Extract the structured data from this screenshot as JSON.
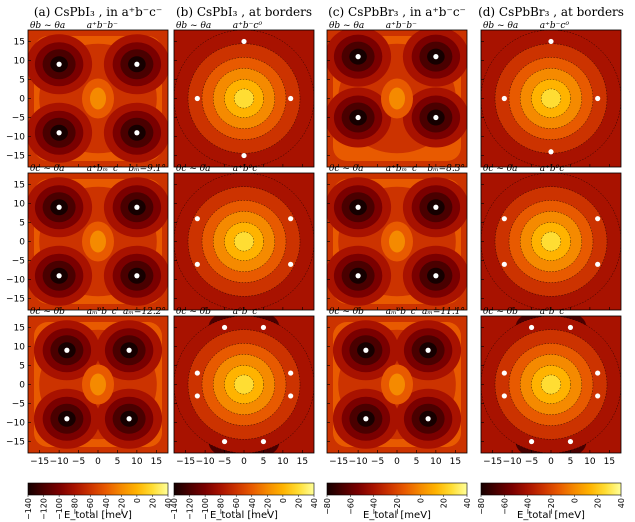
{
  "chart_data": {
    "type": "heatmap",
    "column_titles": [
      "(a) CsPbI₃ , in a⁺b⁻c⁻",
      "(b) CsPbI₃ , at borders",
      "(c) CsPbBr₃ , in a⁺b⁻c⁻",
      "(d) CsPbBr₃ , at borders"
    ],
    "x_ticks": [
      "−15",
      "−10",
      "−5",
      "0",
      "5",
      "10",
      "15"
    ],
    "y_ticks": [
      "15",
      "10",
      "5",
      "0",
      "−5",
      "−10",
      "−15"
    ],
    "xlim": [
      -18,
      18
    ],
    "ylim": [
      -18,
      18
    ],
    "colorbar_label": "E_total [meV]",
    "colorbars": [
      {
        "ticks": [
          "−140",
          "−120",
          "−100",
          "−80",
          "−60",
          "−40",
          "−20",
          "0",
          "20",
          "40"
        ],
        "range": [
          -140,
          40
        ]
      },
      {
        "ticks": [
          "−140",
          "−120",
          "−100",
          "−80",
          "−60",
          "−40",
          "−20",
          "0",
          "20",
          "40"
        ],
        "range": [
          -140,
          40
        ]
      },
      {
        "ticks": [
          "−80",
          "−60",
          "−40",
          "−20",
          "0",
          "20",
          "40"
        ],
        "range": [
          -90,
          40
        ]
      },
      {
        "ticks": [
          "−80",
          "−60",
          "−40",
          "−20",
          "0",
          "20",
          "40"
        ],
        "range": [
          -90,
          40
        ]
      }
    ],
    "panels": [
      {
        "row": 0,
        "col": 0,
        "ylabel": "θb ~ θa",
        "phase": "a⁺b⁻b⁻",
        "extra": "",
        "pattern": "corners4",
        "minima": [
          [
            -10,
            9
          ],
          [
            10,
            9
          ],
          [
            -10,
            -9
          ],
          [
            10,
            -9
          ]
        ]
      },
      {
        "row": 0,
        "col": 1,
        "ylabel": "θb ~ θa",
        "phase": "a⁺b⁻c⁰",
        "extra": "",
        "pattern": "center",
        "minima": [
          [
            0,
            15
          ],
          [
            -12,
            0
          ],
          [
            12,
            0
          ],
          [
            0,
            -15
          ]
        ]
      },
      {
        "row": 0,
        "col": 2,
        "ylabel": "θb ~ θa",
        "phase": "a⁺b⁻b⁻",
        "extra": "",
        "pattern": "corners4",
        "minima": [
          [
            -10,
            11
          ],
          [
            10,
            11
          ],
          [
            -10,
            -5
          ],
          [
            10,
            -5
          ]
        ]
      },
      {
        "row": 0,
        "col": 3,
        "ylabel": "θb ~ θa",
        "phase": "a⁺b⁻c⁰",
        "extra": "",
        "pattern": "center",
        "minima": [
          [
            0,
            15
          ],
          [
            -12,
            0
          ],
          [
            12,
            0
          ],
          [
            0,
            -14
          ]
        ]
      },
      {
        "row": 1,
        "col": 0,
        "ylabel": "θc ~ θa",
        "phase": "a⁺bₘ⁻c⁻",
        "extra": "bₘ=9.1°",
        "pattern": "corners4",
        "minima": [
          [
            -10,
            9
          ],
          [
            10,
            9
          ],
          [
            -10,
            -9
          ],
          [
            10,
            -9
          ]
        ]
      },
      {
        "row": 1,
        "col": 1,
        "ylabel": "θc ~ θa",
        "phase": "a⁺b⁰c⁻",
        "extra": "",
        "pattern": "center",
        "minima": [
          [
            -12,
            6
          ],
          [
            12,
            6
          ],
          [
            -12,
            -6
          ],
          [
            12,
            -6
          ]
        ]
      },
      {
        "row": 1,
        "col": 2,
        "ylabel": "θc ~ θa",
        "phase": "a⁺bₘ⁻c⁻",
        "extra": "bₘ=8.3°",
        "pattern": "corners4",
        "minima": [
          [
            -10,
            9
          ],
          [
            10,
            9
          ],
          [
            -10,
            -9
          ],
          [
            10,
            -9
          ]
        ]
      },
      {
        "row": 1,
        "col": 3,
        "ylabel": "θc ~ θa",
        "phase": "a⁺b⁰c⁻",
        "extra": "",
        "pattern": "center",
        "minima": [
          [
            -12,
            6
          ],
          [
            12,
            6
          ],
          [
            -12,
            -6
          ],
          [
            12,
            -6
          ]
        ]
      },
      {
        "row": 2,
        "col": 0,
        "ylabel": "θc ~ θb",
        "phase": "aₘ⁰b⁻c⁻",
        "extra": "aₘ=12.2°",
        "pattern": "corners4",
        "minima": [
          [
            -8,
            9
          ],
          [
            8,
            9
          ],
          [
            -8,
            -9
          ],
          [
            8,
            -9
          ]
        ]
      },
      {
        "row": 2,
        "col": 1,
        "ylabel": "θc ~ θb",
        "phase": "a⁰b⁻c⁻",
        "extra": "",
        "pattern": "center",
        "minima": [
          [
            -5,
            15
          ],
          [
            5,
            15
          ],
          [
            -12,
            3
          ],
          [
            12,
            3
          ],
          [
            -12,
            -3
          ],
          [
            12,
            -3
          ],
          [
            -5,
            -15
          ],
          [
            5,
            -15
          ]
        ]
      },
      {
        "row": 2,
        "col": 2,
        "ylabel": "θc ~ θb",
        "phase": "aₘ⁰b⁻c⁻",
        "extra": "aₘ=11.1°",
        "pattern": "corners4",
        "minima": [
          [
            -8,
            9
          ],
          [
            8,
            9
          ],
          [
            -8,
            -9
          ],
          [
            8,
            -9
          ]
        ]
      },
      {
        "row": 2,
        "col": 3,
        "ylabel": "θc ~ θb",
        "phase": "a⁰b⁻c⁻",
        "extra": "",
        "pattern": "center",
        "minima": [
          [
            -5,
            15
          ],
          [
            5,
            15
          ],
          [
            -12,
            3
          ],
          [
            12,
            3
          ],
          [
            -12,
            -3
          ],
          [
            12,
            -3
          ],
          [
            -5,
            -15
          ],
          [
            5,
            -15
          ]
        ]
      }
    ],
    "colors": [
      "#160000",
      "#4a0000",
      "#7a0000",
      "#a81200",
      "#cc3300",
      "#e85a00",
      "#f58a00",
      "#ffb300",
      "#ffdd33",
      "#ffff99"
    ]
  }
}
